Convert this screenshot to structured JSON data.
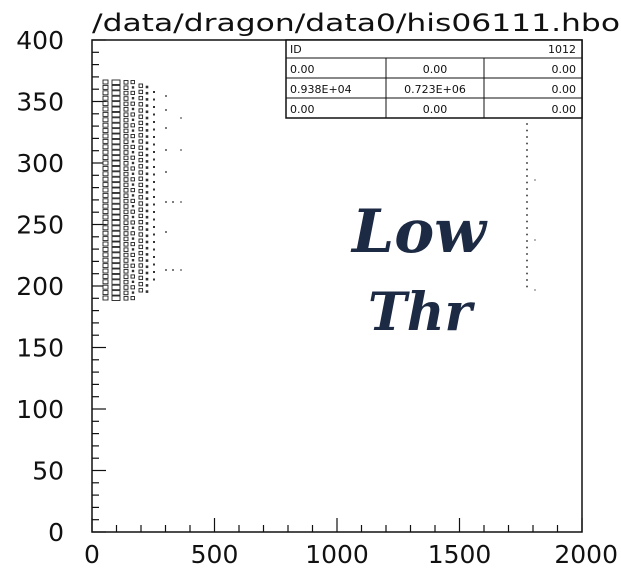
{
  "chart_data": {
    "type": "heatmap",
    "title": "/data/dragon/data0/his06111.hbo",
    "xlim": [
      0,
      2000
    ],
    "ylim": [
      0,
      400
    ],
    "x_ticks": [
      "0",
      "500",
      "1000",
      "1500",
      "2000"
    ],
    "y_ticks": [
      "0",
      "50",
      "100",
      "150",
      "200",
      "250",
      "300",
      "350",
      "400"
    ],
    "grid": false,
    "stats_box": {
      "id_label": "ID",
      "id_value": "1012",
      "rows": [
        [
          "0.00",
          "0.00",
          "0.00"
        ],
        [
          "0.938E+04",
          "0.723E+06",
          "0.00"
        ],
        [
          "0.00",
          "0.00",
          "0.00"
        ]
      ]
    },
    "annotation": [
      "Low",
      "Thr"
    ]
  }
}
